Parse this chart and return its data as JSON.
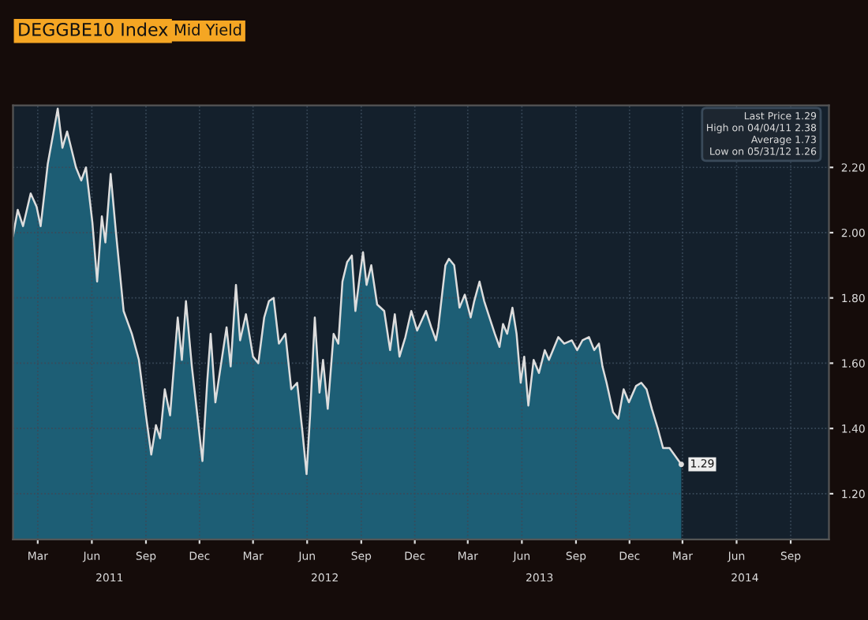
{
  "chart_data": {
    "type": "area",
    "title": "DEGGBE10 Index",
    "subtitle": "Mid Yield",
    "x": [
      "2011-01-18",
      "2011-01-26",
      "2011-02-04",
      "2011-02-17",
      "2011-02-27",
      "2011-03-06",
      "2011-03-18",
      "2011-04-04",
      "2011-04-12",
      "2011-04-20",
      "2011-05-05",
      "2011-05-14",
      "2011-05-22",
      "2011-06-02",
      "2011-06-10",
      "2011-06-18",
      "2011-06-24",
      "2011-07-03",
      "2011-07-12",
      "2011-07-25",
      "2011-08-08",
      "2011-08-20",
      "2011-09-01",
      "2011-09-10",
      "2011-09-18",
      "2011-09-25",
      "2011-10-03",
      "2011-10-12",
      "2011-10-25",
      "2011-11-01",
      "2011-11-08",
      "2011-11-18",
      "2011-11-28",
      "2011-12-06",
      "2011-12-14",
      "2011-12-20",
      "2011-12-28",
      "2012-01-06",
      "2012-01-16",
      "2012-01-23",
      "2012-02-01",
      "2012-02-08",
      "2012-02-18",
      "2012-03-01",
      "2012-03-10",
      "2012-03-20",
      "2012-03-28",
      "2012-04-05",
      "2012-04-14",
      "2012-04-25",
      "2012-05-05",
      "2012-05-15",
      "2012-05-24",
      "2012-05-31",
      "2012-06-06",
      "2012-06-14",
      "2012-06-22",
      "2012-06-28",
      "2012-07-06",
      "2012-07-16",
      "2012-07-24",
      "2012-07-31",
      "2012-08-08",
      "2012-08-16",
      "2012-08-22",
      "2012-08-29",
      "2012-09-04",
      "2012-09-10",
      "2012-09-18",
      "2012-09-28",
      "2012-10-10",
      "2012-10-20",
      "2012-10-28",
      "2012-11-05",
      "2012-11-15",
      "2012-11-25",
      "2012-12-05",
      "2012-12-20",
      "2012-12-29",
      "2013-01-06",
      "2013-01-10",
      "2013-01-22",
      "2013-01-28",
      "2013-02-06",
      "2013-02-15",
      "2013-02-24",
      "2013-03-06",
      "2013-03-12",
      "2013-03-21",
      "2013-03-29",
      "2013-04-07",
      "2013-04-16",
      "2013-04-24",
      "2013-04-30",
      "2013-05-07",
      "2013-05-16",
      "2013-05-23",
      "2013-05-30",
      "2013-06-05",
      "2013-06-12",
      "2013-06-21",
      "2013-06-30",
      "2013-07-10",
      "2013-07-17",
      "2013-08-02",
      "2013-08-12",
      "2013-08-25",
      "2013-09-03",
      "2013-09-12",
      "2013-09-23",
      "2013-10-02",
      "2013-10-10",
      "2013-10-16",
      "2013-10-23",
      "2013-11-03",
      "2013-11-12",
      "2013-11-21",
      "2013-11-30",
      "2013-12-12",
      "2013-12-21",
      "2013-12-30",
      "2014-01-08",
      "2014-01-18",
      "2014-01-27",
      "2014-02-07",
      "2014-02-27"
    ],
    "series": [
      {
        "color": "#1e6a82",
        "values": [
          1.99,
          2.07,
          2.02,
          2.12,
          2.08,
          2.02,
          2.21,
          2.38,
          2.26,
          2.31,
          2.2,
          2.16,
          2.2,
          2.03,
          1.85,
          2.05,
          1.97,
          2.18,
          2.0,
          1.76,
          1.69,
          1.61,
          1.44,
          1.32,
          1.41,
          1.37,
          1.52,
          1.44,
          1.74,
          1.61,
          1.79,
          1.59,
          1.43,
          1.3,
          1.54,
          1.69,
          1.48,
          1.59,
          1.71,
          1.59,
          1.84,
          1.67,
          1.75,
          1.62,
          1.6,
          1.74,
          1.79,
          1.8,
          1.66,
          1.69,
          1.52,
          1.54,
          1.39,
          1.26,
          1.44,
          1.74,
          1.51,
          1.61,
          1.46,
          1.69,
          1.66,
          1.85,
          1.91,
          1.93,
          1.76,
          1.86,
          1.94,
          1.84,
          1.9,
          1.78,
          1.76,
          1.64,
          1.75,
          1.62,
          1.68,
          1.76,
          1.7,
          1.76,
          1.71,
          1.67,
          1.71,
          1.9,
          1.92,
          1.9,
          1.77,
          1.81,
          1.74,
          1.79,
          1.85,
          1.79,
          1.74,
          1.69,
          1.65,
          1.72,
          1.69,
          1.77,
          1.69,
          1.54,
          1.62,
          1.47,
          1.61,
          1.57,
          1.64,
          1.61,
          1.68,
          1.66,
          1.67,
          1.64,
          1.67,
          1.68,
          1.64,
          1.66,
          1.59,
          1.54,
          1.45,
          1.43,
          1.52,
          1.48,
          1.53,
          1.54,
          1.52,
          1.46,
          1.4,
          1.34,
          1.34,
          1.29
        ]
      }
    ],
    "xlim": [
      "2011-01-18",
      "2014-11-05"
    ],
    "xticks": [
      {
        "value": "2011-03-01",
        "label": "Mar"
      },
      {
        "value": "2011-06-01",
        "label": "Jun"
      },
      {
        "value": "2011-09-01",
        "label": "Sep"
      },
      {
        "value": "2011-12-01",
        "label": "Dec"
      },
      {
        "value": "2012-03-01",
        "label": "Mar"
      },
      {
        "value": "2012-06-01",
        "label": "Jun"
      },
      {
        "value": "2012-09-01",
        "label": "Sep"
      },
      {
        "value": "2012-12-01",
        "label": "Dec"
      },
      {
        "value": "2013-03-01",
        "label": "Mar"
      },
      {
        "value": "2013-06-01",
        "label": "Jun"
      },
      {
        "value": "2013-09-01",
        "label": "Sep"
      },
      {
        "value": "2013-12-01",
        "label": "Dec"
      },
      {
        "value": "2014-03-01",
        "label": "Mar"
      },
      {
        "value": "2014-06-01",
        "label": "Jun"
      },
      {
        "value": "2014-09-01",
        "label": "Sep"
      }
    ],
    "x2lim": [
      "2011-01-18",
      "2014-11-05"
    ],
    "x2ticks": [
      {
        "value": "2011-07-01",
        "label": "2011"
      },
      {
        "value": "2012-07-01",
        "label": "2012"
      },
      {
        "value": "2013-07-01",
        "label": "2013"
      },
      {
        "value": "2014-06-15",
        "label": "2014"
      }
    ],
    "ylim": [
      1.06,
      2.39
    ],
    "yticks": [
      {
        "value": 1.2,
        "label": "1.20"
      },
      {
        "value": 1.4,
        "label": "1.40"
      },
      {
        "value": 1.6,
        "label": "1.60"
      },
      {
        "value": 1.8,
        "label": "1.80"
      },
      {
        "value": 2.0,
        "label": "2.00"
      },
      {
        "value": 2.2,
        "label": "2.20"
      }
    ],
    "annotations": [
      "Last Price 1.29",
      "High on 04/04/11 2.38",
      "Average 1.73",
      "Low on 05/31/12 1.26",
      {
        "text": "1.29",
        "x": "2014-02-27",
        "y": 1.29
      }
    ],
    "grid": true,
    "legend": false
  }
}
